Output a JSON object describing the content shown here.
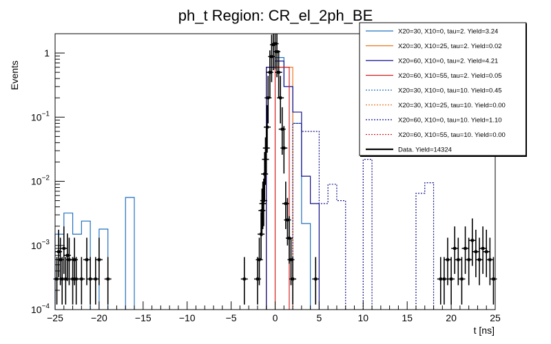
{
  "chart_data": {
    "type": "histogram",
    "title": "ph_t Region: CR_el_2ph_BE",
    "xlabel": "t [ns]",
    "ylabel": "Events",
    "xlim": [
      -25,
      25
    ],
    "ylim": [
      0.0001,
      2
    ],
    "yscale": "log",
    "bin_width": 1.5,
    "x_ticks": [
      -25,
      -20,
      -15,
      -10,
      -5,
      0,
      5,
      10,
      15,
      20,
      25
    ],
    "x_tick_labels": [
      "−25",
      "−20",
      "−15",
      "−10",
      "−5",
      "0",
      "5",
      "10",
      "15",
      "20",
      "25"
    ],
    "y_ticks": [
      0.0001,
      0.001,
      0.01,
      0.1,
      1
    ],
    "y_tick_labels": [
      {
        "base": "10",
        "exp": "−4"
      },
      {
        "base": "10",
        "exp": "−3"
      },
      {
        "base": "10",
        "exp": "−2"
      },
      {
        "base": "10",
        "exp": "−1"
      },
      {
        "base": "1",
        "exp": ""
      }
    ],
    "series": [
      {
        "name": "X20=30, X10=0, tau=2. Yield=3.24",
        "color": "#1f6fbf",
        "style": "solid",
        "bins": [
          [
            -25,
            -24,
            0.0015
          ],
          [
            -24,
            -23,
            0.0032
          ],
          [
            -23,
            -22,
            0.0015
          ],
          [
            -22,
            -21,
            0.0024
          ],
          [
            -20,
            -19,
            0.0018
          ],
          [
            -17,
            -16,
            0.0056
          ],
          [
            -1,
            0,
            0.6
          ],
          [
            0,
            1,
            0.85
          ],
          [
            1,
            2,
            0.3
          ],
          [
            2,
            3,
            0.08
          ],
          [
            3,
            4,
            0.0022
          ]
        ]
      },
      {
        "name": "X20=30, X10=25, tau=2. Yield=0.02",
        "color": "#e8761f",
        "style": "solid",
        "bins": [
          [
            -1,
            0,
            0.6
          ],
          [
            0,
            2,
            0.6
          ]
        ]
      },
      {
        "name": "X20=60, X10=0, tau=2. Yield=4.21",
        "color": "#0d0d8a",
        "style": "solid",
        "bins": [
          [
            -1,
            0,
            0.6
          ],
          [
            0,
            1,
            0.75
          ],
          [
            1,
            2,
            0.3
          ],
          [
            2,
            3,
            0.12
          ],
          [
            3,
            4,
            0.012
          ],
          [
            4,
            5,
            0.0045
          ]
        ]
      },
      {
        "name": "X20=60, X10=55, tau=2. Yield=0.05",
        "color": "#d41e1e",
        "style": "solid",
        "bins": [
          [
            0,
            1.6,
            0.6
          ]
        ]
      },
      {
        "name": "X20=30, X10=0, tau=10. Yield=0.45",
        "color": "#1f6fbf",
        "style": "dotted",
        "bins": []
      },
      {
        "name": "X20=30, X10=25, tau=10. Yield=0.00",
        "color": "#e8761f",
        "style": "dotted",
        "bins": []
      },
      {
        "name": "X20=60, X10=0, tau=10. Yield=1.10",
        "color": "#0d0d8a",
        "style": "dotted",
        "bins": [
          [
            2,
            3,
            0.08
          ],
          [
            3,
            4,
            0.06
          ],
          [
            4,
            5,
            0.06
          ],
          [
            5,
            6,
            0.0045
          ],
          [
            6,
            7,
            0.009
          ],
          [
            7,
            8,
            0.005
          ],
          [
            10,
            11,
            0.022
          ],
          [
            16,
            17,
            0.0065
          ],
          [
            17,
            18,
            0.0095
          ]
        ]
      },
      {
        "name": "X20=60, X10=55, tau=10. Yield=0.00",
        "color": "#d41e1e",
        "style": "dotted",
        "bins": []
      },
      {
        "name": "Data. Yield=14324",
        "color": "#000000",
        "style": "points",
        "points": [
          [
            -24.8,
            0.0003
          ],
          [
            -24.6,
            0.0008
          ],
          [
            -24.4,
            0.0006
          ],
          [
            -24.2,
            0.0003
          ],
          [
            -24.0,
            0.0009
          ],
          [
            -23.8,
            0.0003
          ],
          [
            -23.6,
            0.0007
          ],
          [
            -23.4,
            0.0006
          ],
          [
            -23.0,
            0.0003
          ],
          [
            -22.8,
            0.0006
          ],
          [
            -22.6,
            0.0003
          ],
          [
            -22.0,
            0.0003
          ],
          [
            -21.4,
            0.0006
          ],
          [
            -21.0,
            0.0003
          ],
          [
            -20.4,
            0.0003
          ],
          [
            -20.0,
            0.0006
          ],
          [
            -19.0,
            0.0003
          ],
          [
            -3.5,
            0.0003
          ],
          [
            -2.0,
            0.0003
          ],
          [
            -1.8,
            0.0006
          ],
          [
            -1.6,
            0.0015
          ],
          [
            -1.5,
            0.0035
          ],
          [
            -1.4,
            0.0045
          ],
          [
            -1.3,
            0.005
          ],
          [
            -1.2,
            0.013
          ],
          [
            -1.1,
            0.022
          ],
          [
            -1.0,
            0.033
          ],
          [
            -0.9,
            0.07
          ],
          [
            -0.8,
            0.2
          ],
          [
            -0.6,
            0.5
          ],
          [
            -0.4,
            0.88
          ],
          [
            -0.2,
            1.35
          ],
          [
            0.0,
            1.4
          ],
          [
            0.2,
            1.05
          ],
          [
            0.4,
            0.5
          ],
          [
            0.6,
            0.2
          ],
          [
            0.8,
            0.065
          ],
          [
            1.0,
            0.033
          ],
          [
            1.2,
            0.0045
          ],
          [
            1.4,
            0.0025
          ],
          [
            1.6,
            0.0013
          ],
          [
            1.8,
            0.0006
          ],
          [
            2.0,
            0.0003
          ],
          [
            4.6,
            0.0003
          ],
          [
            18.8,
            0.0003
          ],
          [
            19.2,
            0.0003
          ],
          [
            19.6,
            0.0006
          ],
          [
            20.0,
            0.0003
          ],
          [
            20.4,
            0.0009
          ],
          [
            20.8,
            0.0006
          ],
          [
            21.2,
            0.0003
          ],
          [
            21.6,
            0.0009
          ],
          [
            22.0,
            0.0006
          ],
          [
            22.4,
            0.0012
          ],
          [
            22.8,
            0.0008
          ],
          [
            23.2,
            0.0006
          ],
          [
            23.6,
            0.0009
          ],
          [
            24.0,
            0.0008
          ],
          [
            24.4,
            0.0006
          ],
          [
            24.8,
            0.0003
          ]
        ]
      }
    ]
  }
}
